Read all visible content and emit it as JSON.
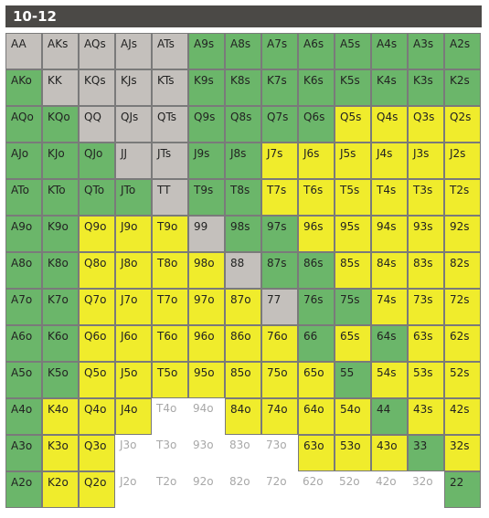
{
  "header": {
    "title": "10-12"
  },
  "colors": {
    "green": "#6bb66a",
    "yellow": "#f0ec2c",
    "gray": "#c4c0bc",
    "white": "#ffffff",
    "title_bar": "#4b4946"
  },
  "grid": {
    "rows": [
      [
        "AA",
        "AKs",
        "AQs",
        "AJs",
        "ATs",
        "A9s",
        "A8s",
        "A7s",
        "A6s",
        "A5s",
        "A4s",
        "A3s",
        "A2s"
      ],
      [
        "AKo",
        "KK",
        "KQs",
        "KJs",
        "KTs",
        "K9s",
        "K8s",
        "K7s",
        "K6s",
        "K5s",
        "K4s",
        "K3s",
        "K2s"
      ],
      [
        "AQo",
        "KQo",
        "QQ",
        "QJs",
        "QTs",
        "Q9s",
        "Q8s",
        "Q7s",
        "Q6s",
        "Q5s",
        "Q4s",
        "Q3s",
        "Q2s"
      ],
      [
        "AJo",
        "KJo",
        "QJo",
        "JJ",
        "JTs",
        "J9s",
        "J8s",
        "J7s",
        "J6s",
        "J5s",
        "J4s",
        "J3s",
        "J2s"
      ],
      [
        "ATo",
        "KTo",
        "QTo",
        "JTo",
        "TT",
        "T9s",
        "T8s",
        "T7s",
        "T6s",
        "T5s",
        "T4s",
        "T3s",
        "T2s"
      ],
      [
        "A9o",
        "K9o",
        "Q9o",
        "J9o",
        "T9o",
        "99",
        "98s",
        "97s",
        "96s",
        "95s",
        "94s",
        "93s",
        "92s"
      ],
      [
        "A8o",
        "K8o",
        "Q8o",
        "J8o",
        "T8o",
        "98o",
        "88",
        "87s",
        "86s",
        "85s",
        "84s",
        "83s",
        "82s"
      ],
      [
        "A7o",
        "K7o",
        "Q7o",
        "J7o",
        "T7o",
        "97o",
        "87o",
        "77",
        "76s",
        "75s",
        "74s",
        "73s",
        "72s"
      ],
      [
        "A6o",
        "K6o",
        "Q6o",
        "J6o",
        "T6o",
        "96o",
        "86o",
        "76o",
        "66",
        "65s",
        "64s",
        "63s",
        "62s"
      ],
      [
        "A5o",
        "K5o",
        "Q5o",
        "J5o",
        "T5o",
        "95o",
        "85o",
        "75o",
        "65o",
        "55",
        "54s",
        "53s",
        "52s"
      ],
      [
        "A4o",
        "K4o",
        "Q4o",
        "J4o",
        "T4o",
        "94o",
        "84o",
        "74o",
        "64o",
        "54o",
        "44",
        "43s",
        "42s"
      ],
      [
        "A3o",
        "K3o",
        "Q3o",
        "J3o",
        "T3o",
        "93o",
        "83o",
        "73o",
        "63o",
        "53o",
        "43o",
        "33",
        "32s"
      ],
      [
        "A2o",
        "K2o",
        "Q2o",
        "J2o",
        "T2o",
        "92o",
        "82o",
        "72o",
        "62o",
        "52o",
        "42o",
        "32o",
        "22"
      ]
    ],
    "fills": [
      [
        "s",
        "s",
        "s",
        "s",
        "s",
        "g",
        "g",
        "g",
        "g",
        "g",
        "g",
        "g",
        "g"
      ],
      [
        "g",
        "s",
        "s",
        "s",
        "s",
        "g",
        "g",
        "g",
        "g",
        "g",
        "g",
        "g",
        "g"
      ],
      [
        "g",
        "g",
        "s",
        "s",
        "s",
        "g",
        "g",
        "g",
        "g",
        "y",
        "y",
        "y",
        "y"
      ],
      [
        "g",
        "g",
        "g",
        "s",
        "s",
        "g",
        "g",
        "y",
        "y",
        "y",
        "y",
        "y",
        "y"
      ],
      [
        "g",
        "g",
        "g",
        "g",
        "s",
        "g",
        "g",
        "y",
        "y",
        "y",
        "y",
        "y",
        "y"
      ],
      [
        "g",
        "g",
        "y",
        "y",
        "y",
        "s",
        "g",
        "g",
        "y",
        "y",
        "y",
        "y",
        "y"
      ],
      [
        "g",
        "g",
        "y",
        "y",
        "y",
        "y",
        "s",
        "g",
        "g",
        "y",
        "y",
        "y",
        "y"
      ],
      [
        "g",
        "g",
        "y",
        "y",
        "y",
        "y",
        "y",
        "s",
        "g",
        "g",
        "y",
        "y",
        "y"
      ],
      [
        "g",
        "g",
        "y",
        "y",
        "y",
        "y",
        "y",
        "y",
        "g",
        "y",
        "g",
        "y",
        "y"
      ],
      [
        "g",
        "g",
        "y",
        "y",
        "y",
        "y",
        "y",
        "y",
        "y",
        "g",
        "y",
        "y",
        "y"
      ],
      [
        "g",
        "y",
        "y",
        "y",
        "w",
        "w",
        "y",
        "y",
        "y",
        "y",
        "g",
        "y",
        "y"
      ],
      [
        "g",
        "y",
        "y",
        "w",
        "w",
        "w",
        "w",
        "w",
        "y",
        "y",
        "y",
        "g",
        "y"
      ],
      [
        "g",
        "y",
        "y",
        "w",
        "w",
        "w",
        "w",
        "w",
        "w",
        "w",
        "w",
        "w",
        "g"
      ]
    ]
  }
}
